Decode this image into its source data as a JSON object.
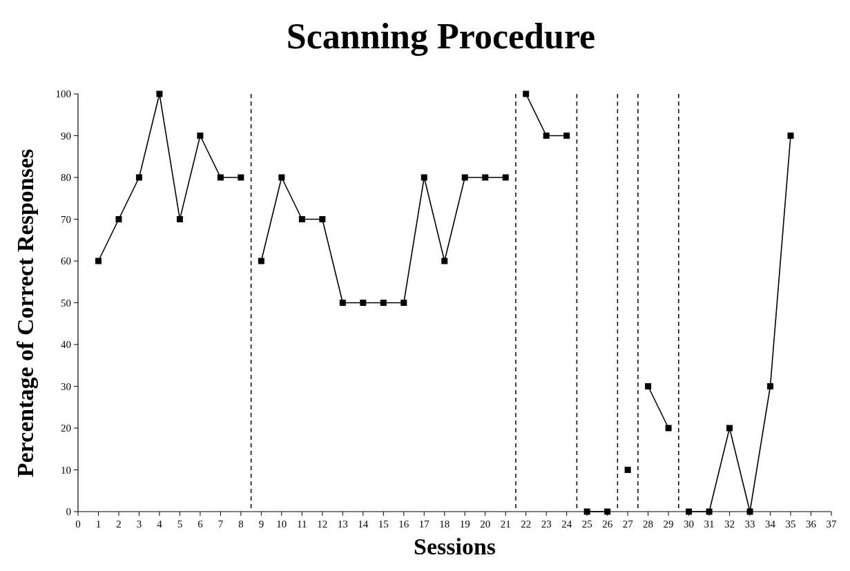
{
  "chart_data": {
    "type": "line",
    "title": "Scanning Procedure",
    "xlabel": "Sessions",
    "ylabel": "Percentage of Correct Responses",
    "xlim": [
      0,
      37
    ],
    "xticks": [
      0,
      1,
      2,
      3,
      4,
      5,
      6,
      7,
      8,
      9,
      10,
      11,
      12,
      13,
      14,
      15,
      16,
      17,
      18,
      19,
      20,
      21,
      22,
      23,
      24,
      25,
      26,
      27,
      28,
      29,
      30,
      31,
      32,
      33,
      34,
      35,
      36,
      37
    ],
    "ylim": [
      0,
      100
    ],
    "yticks": [
      0,
      10,
      20,
      30,
      40,
      50,
      60,
      70,
      80,
      90,
      100
    ],
    "grid": false,
    "marker": "square",
    "line_style": "solid",
    "series": [
      {
        "color": "#000000",
        "x": [
          1,
          2,
          3,
          4,
          5,
          6,
          7,
          8
        ],
        "values": [
          60,
          70,
          80,
          100,
          70,
          90,
          80,
          80
        ]
      },
      {
        "color": "#000000",
        "x": [
          9,
          10,
          11,
          12,
          13,
          14,
          15,
          16,
          17,
          18,
          19,
          20,
          21
        ],
        "values": [
          60,
          80,
          70,
          70,
          50,
          50,
          50,
          50,
          80,
          60,
          80,
          80,
          80
        ]
      },
      {
        "color": "#000000",
        "x": [
          22,
          23,
          24
        ],
        "values": [
          100,
          90,
          90
        ]
      },
      {
        "color": "#000000",
        "x": [
          25,
          26
        ],
        "values": [
          0,
          0
        ]
      },
      {
        "color": "#000000",
        "x": [
          27
        ],
        "values": [
          10
        ]
      },
      {
        "color": "#000000",
        "x": [
          28,
          29
        ],
        "values": [
          30,
          20
        ]
      },
      {
        "color": "#000000",
        "x": [
          30,
          31,
          32,
          33,
          34,
          35
        ],
        "values": [
          0,
          0,
          20,
          0,
          30,
          90
        ]
      }
    ],
    "ref_lines": [
      {
        "axis": "x",
        "value": 8.5,
        "line_style": "dashed",
        "color": "#000000"
      },
      {
        "axis": "x",
        "value": 21.5,
        "line_style": "dashed",
        "color": "#000000"
      },
      {
        "axis": "x",
        "value": 24.5,
        "line_style": "dashed",
        "color": "#000000"
      },
      {
        "axis": "x",
        "value": 26.5,
        "line_style": "dashed",
        "color": "#000000"
      },
      {
        "axis": "x",
        "value": 27.5,
        "line_style": "dashed",
        "color": "#000000"
      },
      {
        "axis": "x",
        "value": 29.5,
        "line_style": "dashed",
        "color": "#000000"
      }
    ]
  }
}
